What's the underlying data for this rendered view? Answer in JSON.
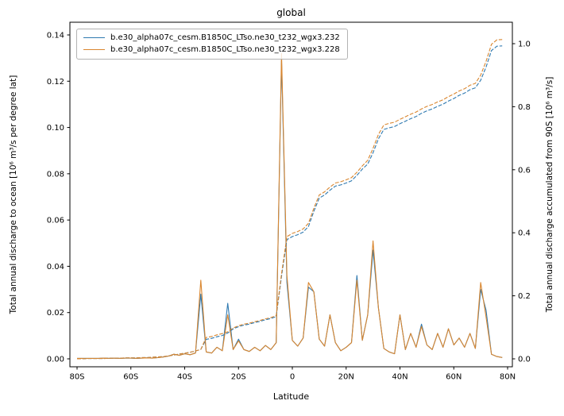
{
  "figure": {
    "title": "global",
    "xlabel": "Latitude",
    "ylabel_left": "Total annual discharge to ocean [10⁶ m³/s per degree lat]",
    "ylabel_right": "Total annual discharge accumulated from 90S [10⁶ m³/s]",
    "background": "#ffffff"
  },
  "legend": {
    "position": "upper left",
    "items": [
      {
        "label": "b.e30_alpha07c_cesm.B1850C_LTso.ne30_t232_wgx3.232",
        "color": "#2e79b0"
      },
      {
        "label": "b.e30_alpha07c_cesm.B1850C_LTso.ne30_t232_wgx3.228",
        "color": "#d9862f"
      }
    ]
  },
  "axes": {
    "x_ticks": [
      {
        "lat": -80,
        "label": "80S"
      },
      {
        "lat": -60,
        "label": "60S"
      },
      {
        "lat": -40,
        "label": "40S"
      },
      {
        "lat": -20,
        "label": "20S"
      },
      {
        "lat": 0,
        "label": "0"
      },
      {
        "lat": 20,
        "label": "20N"
      },
      {
        "lat": 40,
        "label": "40N"
      },
      {
        "lat": 60,
        "label": "60N"
      },
      {
        "lat": 80,
        "label": "80N"
      }
    ],
    "y_left_ticks": [
      {
        "v": 0.0,
        "label": "0.00"
      },
      {
        "v": 0.02,
        "label": "0.02"
      },
      {
        "v": 0.04,
        "label": "0.04"
      },
      {
        "v": 0.06,
        "label": "0.06"
      },
      {
        "v": 0.08,
        "label": "0.08"
      },
      {
        "v": 0.1,
        "label": "0.10"
      },
      {
        "v": 0.12,
        "label": "0.12"
      },
      {
        "v": 0.14,
        "label": "0.14"
      }
    ],
    "y_right_ticks": [
      {
        "v": 0.0,
        "label": "0.0"
      },
      {
        "v": 0.2,
        "label": "0.2"
      },
      {
        "v": 0.4,
        "label": "0.4"
      },
      {
        "v": 0.6,
        "label": "0.6"
      },
      {
        "v": 0.8,
        "label": "0.8"
      },
      {
        "v": 1.0,
        "label": "1.0"
      }
    ]
  },
  "chart_data": {
    "type": "line",
    "title": "global",
    "xlabel": "Latitude",
    "ylabel_left": "Total annual discharge to ocean [10⁶ m³/s per degree lat]",
    "ylabel_right": "Total annual discharge accumulated from 90S [10⁶ m³/s]",
    "x_range": [
      -82.7,
      81.8
    ],
    "y_left_range": [
      -0.0034,
      0.1455
    ],
    "y_right_range": [
      -0.025,
      1.068
    ],
    "grid": false,
    "legend_position": "upper left",
    "x": [
      -80,
      -78,
      -76,
      -74,
      -72,
      -70,
      -68,
      -66,
      -64,
      -62,
      -60,
      -58,
      -56,
      -54,
      -52,
      -50,
      -48,
      -46,
      -44,
      -42,
      -40,
      -38,
      -36,
      -34,
      -32,
      -30,
      -28,
      -26,
      -24,
      -22,
      -20,
      -18,
      -16,
      -14,
      -12,
      -10,
      -8,
      -6,
      -4,
      -2,
      0,
      2,
      4,
      6,
      8,
      10,
      12,
      14,
      16,
      18,
      20,
      22,
      24,
      26,
      28,
      30,
      32,
      34,
      36,
      38,
      40,
      42,
      44,
      46,
      48,
      50,
      52,
      54,
      56,
      58,
      60,
      62,
      64,
      66,
      68,
      70,
      72,
      74,
      76,
      78
    ],
    "series": [
      {
        "key": "232-discharge",
        "name": "b.e30_alpha07c_cesm.B1850C_LTso.ne30_t232_wgx3.232 discharge per degree",
        "axis": "left",
        "style": "solid",
        "color": "#2e79b0",
        "values": [
          0.0002,
          0.0002,
          0.0002,
          0.0002,
          0.0002,
          0.0003,
          0.0002,
          0.0003,
          0.0002,
          0.0003,
          0.0003,
          0.0002,
          0.0003,
          0.0004,
          0.0003,
          0.0005,
          0.0008,
          0.0012,
          0.002,
          0.0015,
          0.0022,
          0.0018,
          0.0025,
          0.028,
          0.003,
          0.0025,
          0.005,
          0.0035,
          0.024,
          0.004,
          0.0085,
          0.004,
          0.0032,
          0.005,
          0.0035,
          0.0058,
          0.004,
          0.007,
          0.129,
          0.033,
          0.008,
          0.0055,
          0.009,
          0.031,
          0.029,
          0.0085,
          0.0055,
          0.019,
          0.007,
          0.0035,
          0.005,
          0.007,
          0.036,
          0.008,
          0.019,
          0.047,
          0.022,
          0.0045,
          0.003,
          0.0022,
          0.019,
          0.004,
          0.011,
          0.005,
          0.015,
          0.006,
          0.004,
          0.011,
          0.005,
          0.013,
          0.006,
          0.009,
          0.005,
          0.011,
          0.0045,
          0.03,
          0.021,
          0.002,
          0.001,
          0.0006
        ]
      },
      {
        "key": "228-discharge",
        "name": "b.e30_alpha07c_cesm.B1850C_LTso.ne30_t232_wgx3.228 discharge per degree",
        "axis": "left",
        "style": "solid",
        "color": "#d9862f",
        "values": [
          0.0002,
          0.0002,
          0.0002,
          0.0002,
          0.0002,
          0.0003,
          0.0002,
          0.0003,
          0.0002,
          0.0003,
          0.0003,
          0.0002,
          0.0003,
          0.0004,
          0.0003,
          0.0005,
          0.0008,
          0.0012,
          0.002,
          0.0015,
          0.0022,
          0.0018,
          0.0025,
          0.034,
          0.003,
          0.0025,
          0.005,
          0.0035,
          0.019,
          0.004,
          0.0078,
          0.004,
          0.0032,
          0.005,
          0.0035,
          0.0058,
          0.004,
          0.007,
          0.132,
          0.036,
          0.008,
          0.0055,
          0.009,
          0.033,
          0.029,
          0.0085,
          0.0055,
          0.019,
          0.007,
          0.0035,
          0.005,
          0.007,
          0.034,
          0.008,
          0.019,
          0.051,
          0.022,
          0.0045,
          0.003,
          0.0022,
          0.019,
          0.004,
          0.011,
          0.005,
          0.014,
          0.006,
          0.004,
          0.011,
          0.005,
          0.013,
          0.006,
          0.009,
          0.005,
          0.011,
          0.0045,
          0.033,
          0.018,
          0.002,
          0.001,
          0.0006
        ]
      },
      {
        "key": "232-accumulated",
        "name": "b.e30_alpha07c_cesm.B1850C_LTso.ne30_t232_wgx3.232 accumulated from 90S",
        "axis": "right",
        "style": "dashed",
        "color": "#2e79b0",
        "values": [
          0,
          0,
          0.001,
          0.001,
          0.001,
          0.001,
          0.002,
          0.002,
          0.002,
          0.003,
          0.003,
          0.003,
          0.004,
          0.004,
          0.005,
          0.006,
          0.007,
          0.009,
          0.012,
          0.015,
          0.018,
          0.021,
          0.025,
          0.03,
          0.062,
          0.065,
          0.07,
          0.074,
          0.082,
          0.095,
          0.102,
          0.107,
          0.11,
          0.115,
          0.119,
          0.124,
          0.128,
          0.134,
          0.262,
          0.378,
          0.388,
          0.394,
          0.402,
          0.42,
          0.468,
          0.51,
          0.52,
          0.535,
          0.548,
          0.552,
          0.558,
          0.565,
          0.582,
          0.602,
          0.618,
          0.654,
          0.698,
          0.728,
          0.733,
          0.737,
          0.746,
          0.754,
          0.762,
          0.769,
          0.779,
          0.787,
          0.793,
          0.801,
          0.808,
          0.818,
          0.826,
          0.836,
          0.843,
          0.854,
          0.86,
          0.884,
          0.926,
          0.978,
          0.992,
          0.993
        ]
      },
      {
        "key": "228-accumulated",
        "name": "b.e30_alpha07c_cesm.B1850C_LTso.ne30_t232_wgx3.228 accumulated from 90S",
        "axis": "right",
        "style": "dashed",
        "color": "#d9862f",
        "values": [
          0,
          0,
          0.001,
          0.001,
          0.001,
          0.001,
          0.002,
          0.002,
          0.002,
          0.003,
          0.003,
          0.003,
          0.004,
          0.004,
          0.005,
          0.006,
          0.007,
          0.009,
          0.012,
          0.015,
          0.018,
          0.021,
          0.025,
          0.03,
          0.068,
          0.071,
          0.076,
          0.08,
          0.086,
          0.098,
          0.105,
          0.11,
          0.113,
          0.118,
          0.122,
          0.127,
          0.131,
          0.137,
          0.27,
          0.388,
          0.398,
          0.404,
          0.412,
          0.43,
          0.478,
          0.52,
          0.53,
          0.545,
          0.558,
          0.562,
          0.568,
          0.575,
          0.592,
          0.612,
          0.63,
          0.668,
          0.712,
          0.742,
          0.747,
          0.751,
          0.76,
          0.768,
          0.776,
          0.783,
          0.793,
          0.801,
          0.807,
          0.815,
          0.822,
          0.832,
          0.84,
          0.85,
          0.857,
          0.868,
          0.874,
          0.9,
          0.944,
          0.998,
          1.012,
          1.013
        ]
      }
    ]
  }
}
